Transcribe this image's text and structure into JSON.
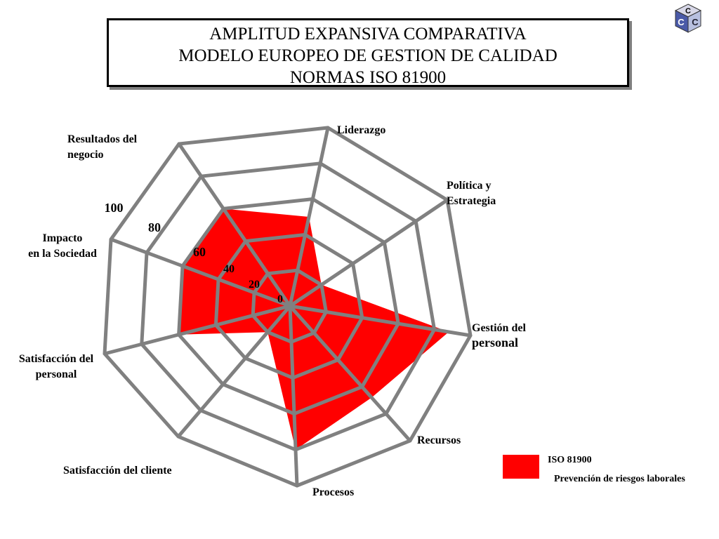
{
  "title": {
    "line1": "AMPLITUD EXPANSIVA COMPARATIVA",
    "line2": "MODELO EUROPEO DE GESTION DE CALIDAD",
    "line3": "NORMAS  ISO 81900"
  },
  "logo": {
    "letters": [
      "C",
      "C",
      "C"
    ],
    "icon": "cube-logo-icon"
  },
  "colors": {
    "fill": "#ff0000",
    "grid": "#808080",
    "text": "#000000"
  },
  "legend": {
    "series_label": "ISO 81900",
    "note": "Prevención de riesgos laborales"
  },
  "chart_data": {
    "type": "radar",
    "axes": [
      {
        "line1": "Liderazgo",
        "line2": ""
      },
      {
        "line1": "Política y",
        "line2": "Estrategia"
      },
      {
        "line1": "Gestión del",
        "line2": "personal"
      },
      {
        "line1": "Recursos",
        "line2": ""
      },
      {
        "line1": "Procesos",
        "line2": ""
      },
      {
        "line1": "Satisfacción del  cliente",
        "line2": ""
      },
      {
        "line1": "Satisfacción del",
        "line2": "personal"
      },
      {
        "line1": "Impacto",
        "line2": "en la Sociedad"
      },
      {
        "line1": "Resultados del",
        "line2": "negocio"
      }
    ],
    "rings": [
      0,
      20,
      40,
      60,
      80,
      100
    ],
    "scale": [
      0,
      100
    ],
    "series": [
      {
        "name": "ISO 81900",
        "values": [
          50,
          20,
          88,
          68,
          80,
          20,
          60,
          60,
          60
        ]
      }
    ],
    "grid": true,
    "legend_position": "bottom-right"
  }
}
